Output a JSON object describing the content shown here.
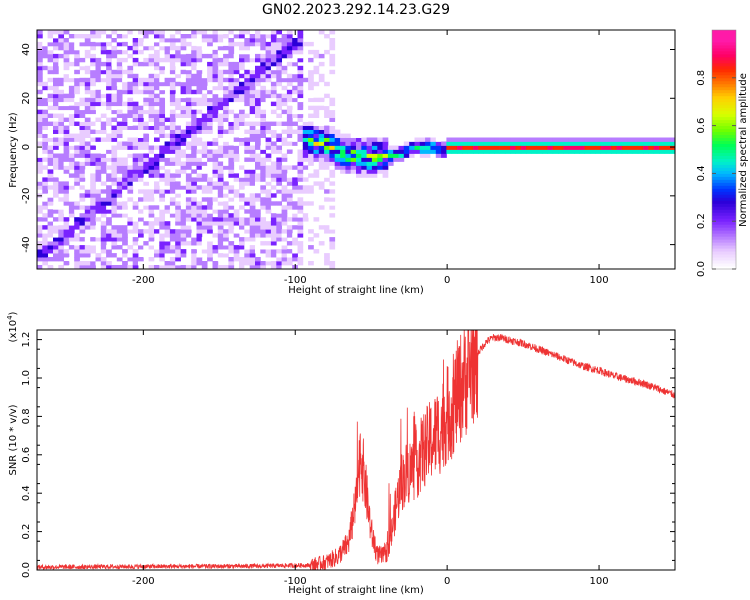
{
  "chart_data": [
    {
      "type": "heatmap",
      "title": "GN02.2023.292.14.23.G29",
      "xlabel": "Height of straight line (km)",
      "ylabel": "Frequency (Hz)",
      "xlim": [
        -270,
        150
      ],
      "ylim": [
        -50,
        48
      ],
      "xticks": [
        -200,
        -100,
        0,
        100
      ],
      "yticks": [
        -40,
        -20,
        0,
        20,
        40
      ],
      "grid": false,
      "colorbar": {
        "label": "Normalized spectral amplitude",
        "range": [
          0.0,
          1.0
        ],
        "ticks": [
          0.0,
          0.2,
          0.4,
          0.6,
          0.8
        ],
        "tick_labels": [
          "0.0",
          "0.2",
          "0.4",
          "0.6",
          "0.8"
        ],
        "colors": [
          "#ffffff",
          "#e9ccff",
          "#b77dff",
          "#7a22ff",
          "#2a00d8",
          "#0033ff",
          "#00b8ff",
          "#00f2c8",
          "#00ff55",
          "#6cff00",
          "#d8ff00",
          "#ffd000",
          "#ff7a00",
          "#ff2800",
          "#ff0066",
          "#ff1aa8"
        ]
      },
      "features": [
        {
          "name": "noise region",
          "x_range": [
            -270,
            -95
          ],
          "level": 0.1
        },
        {
          "name": "diagonal streak",
          "points": [
            [
              -265,
              -43
            ],
            [
              -100,
              43
            ]
          ],
          "level": 0.2
        },
        {
          "name": "transition cluster",
          "points": [
            [
              -95,
              3
            ],
            [
              -80,
              1
            ],
            [
              -65,
              -3
            ],
            [
              -50,
              -4
            ],
            [
              -40,
              -4
            ],
            [
              -30,
              -2
            ],
            [
              -20,
              0
            ],
            [
              -10,
              0
            ],
            [
              -3,
              -1
            ]
          ],
          "level": 0.55
        },
        {
          "name": "stable tone",
          "x_range": [
            0,
            150
          ],
          "y": 0,
          "level": 0.85
        }
      ]
    },
    {
      "type": "line",
      "title": "",
      "xlabel": "Height of straight line (km)",
      "ylabel": "SNR (10 * v/v)",
      "multiplier_label": "(x10",
      "multiplier_exp": "4",
      "multiplier_close": ")",
      "xlim": [
        -270,
        150
      ],
      "ylim": [
        0.0,
        1.25
      ],
      "xticks": [
        -200,
        -100,
        0,
        100
      ],
      "yticks": [
        0.0,
        0.2,
        0.4,
        0.6,
        0.8,
        1.0,
        1.2
      ],
      "ytick_labels": [
        "0.0",
        "0.2",
        "0.4",
        "0.6",
        "0.8",
        "1.0",
        "1.2"
      ],
      "grid": false,
      "series": [
        {
          "color": "#ee3333",
          "x": [
            -270,
            -200,
            -130,
            -90,
            -80,
            -72,
            -65,
            -60,
            -57,
            -54,
            -50,
            -46,
            -42,
            -38,
            -36,
            -33,
            -30,
            -27,
            -24,
            -20,
            -16,
            -12,
            -8,
            -5,
            -2,
            2,
            6,
            10,
            14,
            18,
            22,
            26,
            30,
            35,
            40,
            50,
            60,
            70,
            80,
            90,
            100,
            110,
            120,
            130,
            140,
            150
          ],
          "y": [
            0.015,
            0.018,
            0.02,
            0.025,
            0.04,
            0.07,
            0.14,
            0.35,
            0.62,
            0.45,
            0.2,
            0.08,
            0.07,
            0.12,
            0.22,
            0.36,
            0.46,
            0.5,
            0.52,
            0.55,
            0.62,
            0.66,
            0.7,
            0.72,
            0.78,
            0.82,
            0.9,
            0.97,
            1.03,
            1.1,
            1.15,
            1.19,
            1.21,
            1.21,
            1.2,
            1.18,
            1.15,
            1.12,
            1.09,
            1.06,
            1.04,
            1.01,
            0.99,
            0.97,
            0.94,
            0.91
          ]
        }
      ]
    }
  ]
}
